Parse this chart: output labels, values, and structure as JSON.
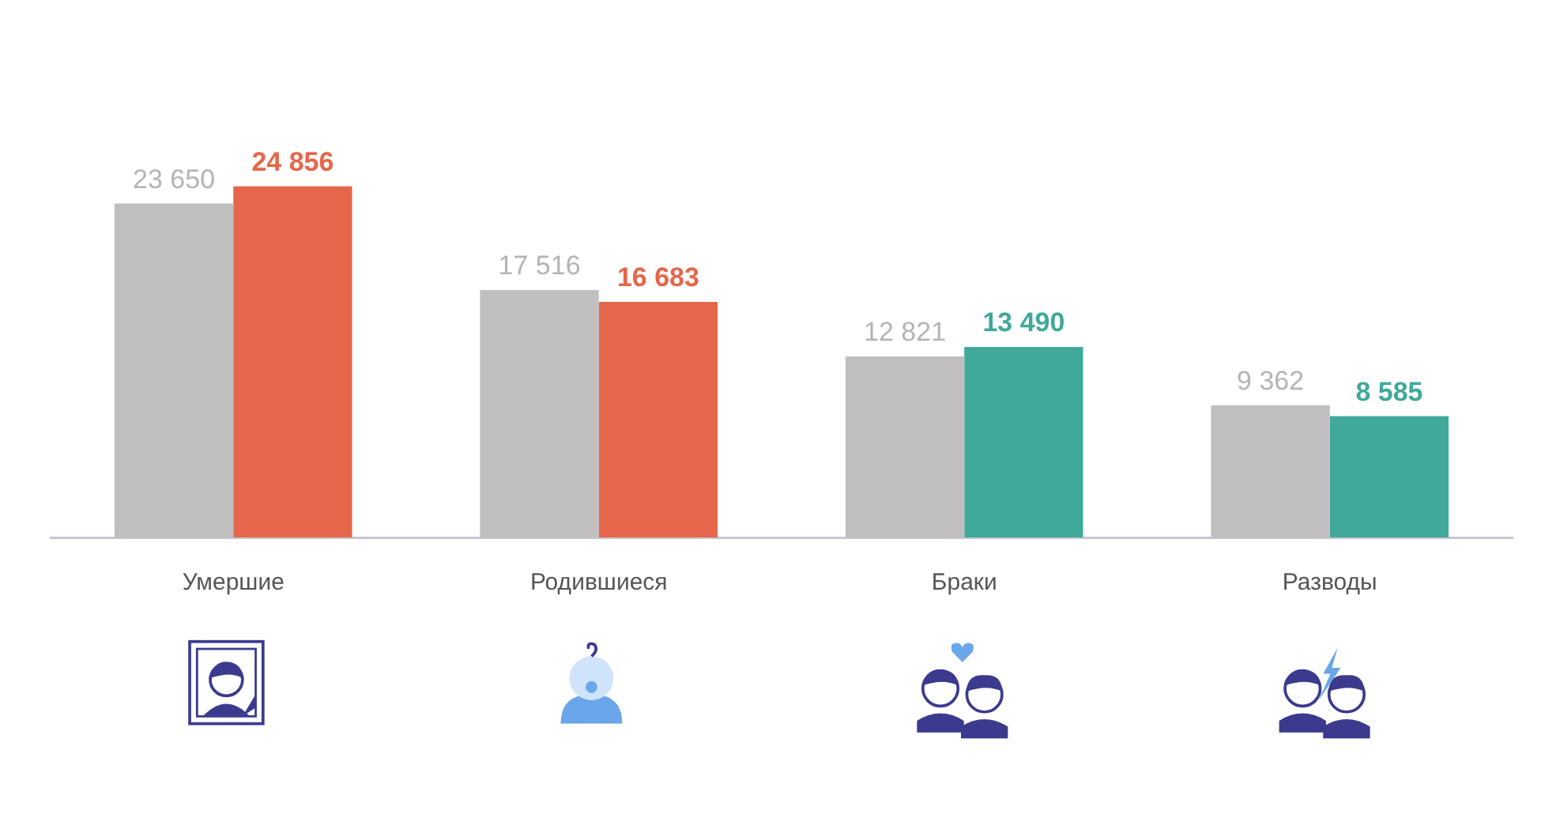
{
  "chart_data": {
    "type": "bar",
    "categories": [
      "Умершие",
      "Родившиеся",
      "Браки",
      "Разводы"
    ],
    "series": [
      {
        "color": "#c0bec0",
        "values": [
          23650,
          17516,
          12821,
          9362
        ],
        "value_labels": [
          "23 650",
          "17 516",
          "12 821",
          "9 362"
        ]
      },
      {
        "colors": [
          "#e5664a",
          "#e5664a",
          "#40a99a",
          "#40a99a"
        ],
        "values": [
          24856,
          16683,
          13490,
          8585
        ],
        "value_labels": [
          "24 856",
          "16 683",
          "13 490",
          "8 585"
        ]
      }
    ],
    "grid": false,
    "legend": false
  }
}
